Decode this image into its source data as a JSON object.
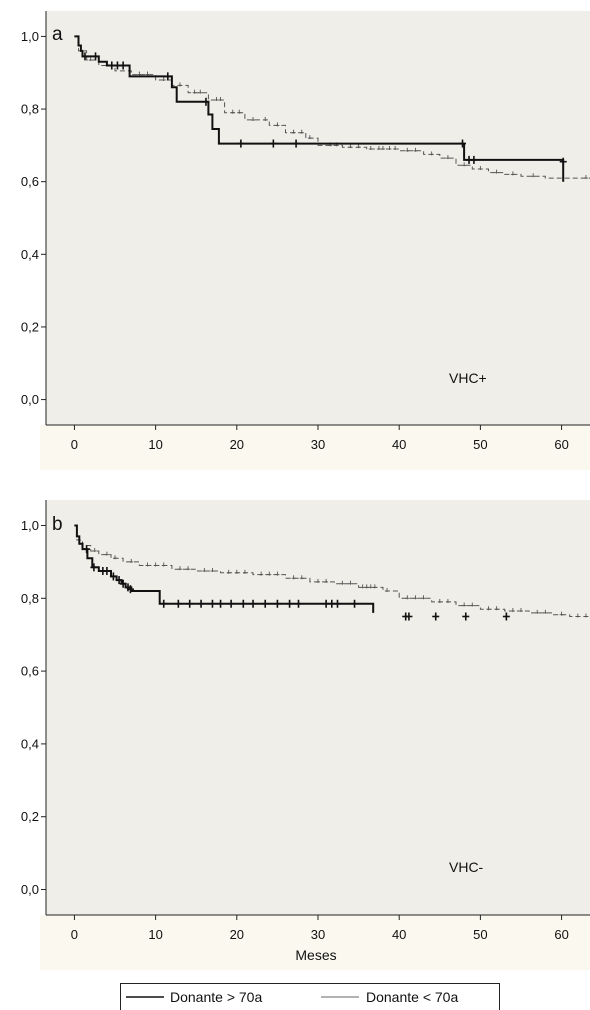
{
  "colors": {
    "panel_background": "#f0eee8",
    "figure_background": "#ffffff",
    "band_background": "#fbf9ef",
    "axis": "#222222",
    "donor_over_70": "#111111",
    "donor_under_70": "#555555"
  },
  "chart_data": [
    {
      "type": "line",
      "panel_label": "a",
      "annotation": "VHC+",
      "xlabel": "",
      "ylabel": "",
      "xlim": [
        -3.5,
        63.5
      ],
      "ylim": [
        -0.07,
        1.07
      ],
      "x_ticks": [
        0,
        10,
        20,
        30,
        40,
        50,
        60
      ],
      "y_ticks": [
        0.0,
        0.2,
        0.4,
        0.6,
        0.8,
        1.0
      ],
      "x_tick_labels": [
        "0",
        "10",
        "20",
        "30",
        "40",
        "50",
        "60"
      ],
      "y_tick_labels": [
        "0,0",
        "0,2",
        "0,4",
        "0,6",
        "0,8",
        "1,0"
      ],
      "grid": false,
      "series": [
        {
          "name": "Donante > 70a",
          "style": "solid",
          "steps": [
            [
              0,
              1.0
            ],
            [
              0.5,
              0.975
            ],
            [
              0.8,
              0.96
            ],
            [
              1.0,
              0.945
            ],
            [
              3.0,
              0.93
            ],
            [
              4.0,
              0.92
            ],
            [
              6.8,
              0.89
            ],
            [
              12.0,
              0.86
            ],
            [
              12.6,
              0.82
            ],
            [
              16.5,
              0.785
            ],
            [
              17.0,
              0.745
            ],
            [
              17.8,
              0.705
            ],
            [
              48.0,
              0.66
            ],
            [
              60.2,
              0.6
            ]
          ],
          "censored": [
            [
              1.3,
              0.945
            ],
            [
              2.6,
              0.945
            ],
            [
              4.6,
              0.92
            ],
            [
              5.3,
              0.92
            ],
            [
              6.0,
              0.92
            ],
            [
              11.5,
              0.89
            ],
            [
              16.2,
              0.82
            ],
            [
              20.5,
              0.705
            ],
            [
              24.5,
              0.705
            ],
            [
              27.3,
              0.705
            ],
            [
              47.8,
              0.705
            ],
            [
              48.6,
              0.66
            ],
            [
              49.2,
              0.66
            ],
            [
              60.2,
              0.655
            ]
          ]
        },
        {
          "name": "Donante < 70a",
          "style": "dashed",
          "steps": [
            [
              0,
              1.0
            ],
            [
              0.5,
              0.96
            ],
            [
              1.5,
              0.935
            ],
            [
              3.0,
              0.92
            ],
            [
              5.0,
              0.905
            ],
            [
              7.0,
              0.895
            ],
            [
              10.0,
              0.88
            ],
            [
              12.0,
              0.865
            ],
            [
              14.0,
              0.845
            ],
            [
              16.5,
              0.825
            ],
            [
              18.5,
              0.79
            ],
            [
              21.0,
              0.77
            ],
            [
              24.0,
              0.755
            ],
            [
              26.0,
              0.735
            ],
            [
              28.5,
              0.72
            ],
            [
              30.0,
              0.7
            ],
            [
              33.0,
              0.695
            ],
            [
              36.0,
              0.69
            ],
            [
              40.0,
              0.685
            ],
            [
              43.0,
              0.675
            ],
            [
              45.0,
              0.665
            ],
            [
              47.0,
              0.645
            ],
            [
              49.0,
              0.635
            ],
            [
              51.0,
              0.625
            ],
            [
              53.0,
              0.62
            ],
            [
              55.0,
              0.615
            ],
            [
              58.0,
              0.61
            ],
            [
              63.5,
              0.61
            ]
          ],
          "censored": [
            [
              2.0,
              0.935
            ],
            [
              4.0,
              0.92
            ],
            [
              8.0,
              0.895
            ],
            [
              9.0,
              0.895
            ],
            [
              11.0,
              0.88
            ],
            [
              13.0,
              0.865
            ],
            [
              14.8,
              0.845
            ],
            [
              15.5,
              0.845
            ],
            [
              17.5,
              0.825
            ],
            [
              18.0,
              0.825
            ],
            [
              19.5,
              0.79
            ],
            [
              20.3,
              0.79
            ],
            [
              22.0,
              0.77
            ],
            [
              23.5,
              0.77
            ],
            [
              25.0,
              0.755
            ],
            [
              27.0,
              0.735
            ],
            [
              28.0,
              0.735
            ],
            [
              29.0,
              0.72
            ],
            [
              31.5,
              0.7
            ],
            [
              32.3,
              0.7
            ],
            [
              34.0,
              0.695
            ],
            [
              35.0,
              0.695
            ],
            [
              36.5,
              0.69
            ],
            [
              37.5,
              0.69
            ],
            [
              38.0,
              0.69
            ],
            [
              38.8,
              0.69
            ],
            [
              39.5,
              0.69
            ],
            [
              41.0,
              0.685
            ],
            [
              42.0,
              0.685
            ],
            [
              44.0,
              0.675
            ],
            [
              46.0,
              0.665
            ],
            [
              48.0,
              0.645
            ],
            [
              50.0,
              0.635
            ],
            [
              52.0,
              0.625
            ],
            [
              54.0,
              0.62
            ],
            [
              56.5,
              0.615
            ],
            [
              63.0,
              0.61
            ]
          ]
        }
      ]
    },
    {
      "type": "line",
      "panel_label": "b",
      "annotation": "VHC-",
      "xlabel": "Meses",
      "ylabel": "",
      "xlim": [
        -3.5,
        63.5
      ],
      "ylim": [
        -0.07,
        1.07
      ],
      "x_ticks": [
        0,
        10,
        20,
        30,
        40,
        50,
        60
      ],
      "y_ticks": [
        0.0,
        0.2,
        0.4,
        0.6,
        0.8,
        1.0
      ],
      "x_tick_labels": [
        "0",
        "10",
        "20",
        "30",
        "40",
        "50",
        "60"
      ],
      "y_tick_labels": [
        "0,0",
        "0,2",
        "0,4",
        "0,6",
        "0,8",
        "1,0"
      ],
      "grid": false,
      "series": [
        {
          "name": "Donante > 70a",
          "style": "solid",
          "steps": [
            [
              0,
              1.0
            ],
            [
              0.3,
              0.97
            ],
            [
              0.6,
              0.95
            ],
            [
              1.0,
              0.935
            ],
            [
              1.6,
              0.91
            ],
            [
              2.2,
              0.885
            ],
            [
              3.0,
              0.875
            ],
            [
              4.5,
              0.86
            ],
            [
              5.2,
              0.85
            ],
            [
              5.8,
              0.84
            ],
            [
              6.3,
              0.83
            ],
            [
              7.0,
              0.82
            ],
            [
              10.5,
              0.785
            ],
            [
              36.8,
              0.76
            ]
          ],
          "censored": [
            [
              1.5,
              0.935
            ],
            [
              2.4,
              0.885
            ],
            [
              3.5,
              0.875
            ],
            [
              4.0,
              0.875
            ],
            [
              4.8,
              0.86
            ],
            [
              5.5,
              0.85
            ],
            [
              6.0,
              0.84
            ],
            [
              6.6,
              0.83
            ],
            [
              6.9,
              0.825
            ],
            [
              11.0,
              0.785
            ],
            [
              12.8,
              0.785
            ],
            [
              14.2,
              0.785
            ],
            [
              15.6,
              0.785
            ],
            [
              17.0,
              0.785
            ],
            [
              18.0,
              0.785
            ],
            [
              19.3,
              0.785
            ],
            [
              20.8,
              0.785
            ],
            [
              22.0,
              0.785
            ],
            [
              23.5,
              0.785
            ],
            [
              25.0,
              0.785
            ],
            [
              26.5,
              0.785
            ],
            [
              27.6,
              0.785
            ],
            [
              31.0,
              0.785
            ],
            [
              31.7,
              0.785
            ],
            [
              32.4,
              0.785
            ],
            [
              34.5,
              0.785
            ],
            [
              40.8,
              0.75
            ],
            [
              41.2,
              0.75
            ],
            [
              44.5,
              0.75
            ],
            [
              48.2,
              0.75
            ],
            [
              53.2,
              0.75
            ]
          ]
        },
        {
          "name": "Donante < 70a",
          "style": "dashed",
          "steps": [
            [
              0,
              1.0
            ],
            [
              0.3,
              0.96
            ],
            [
              1.0,
              0.945
            ],
            [
              2.0,
              0.93
            ],
            [
              3.0,
              0.92
            ],
            [
              4.5,
              0.91
            ],
            [
              6.0,
              0.9
            ],
            [
              8.0,
              0.89
            ],
            [
              12.0,
              0.88
            ],
            [
              15.0,
              0.875
            ],
            [
              18.0,
              0.87
            ],
            [
              22.0,
              0.865
            ],
            [
              26.0,
              0.855
            ],
            [
              29.0,
              0.845
            ],
            [
              32.0,
              0.84
            ],
            [
              35.0,
              0.83
            ],
            [
              38.0,
              0.82
            ],
            [
              40.0,
              0.8
            ],
            [
              44.0,
              0.79
            ],
            [
              47.0,
              0.78
            ],
            [
              50.0,
              0.77
            ],
            [
              53.0,
              0.765
            ],
            [
              56.0,
              0.76
            ],
            [
              59.0,
              0.755
            ],
            [
              61.0,
              0.75
            ],
            [
              63.5,
              0.75
            ]
          ],
          "censored": [
            [
              2.5,
              0.93
            ],
            [
              4.0,
              0.92
            ],
            [
              5.0,
              0.91
            ],
            [
              7.0,
              0.9
            ],
            [
              9.0,
              0.89
            ],
            [
              10.0,
              0.89
            ],
            [
              11.0,
              0.89
            ],
            [
              13.0,
              0.88
            ],
            [
              14.0,
              0.88
            ],
            [
              16.0,
              0.875
            ],
            [
              17.0,
              0.875
            ],
            [
              19.0,
              0.87
            ],
            [
              20.0,
              0.87
            ],
            [
              21.0,
              0.87
            ],
            [
              23.0,
              0.865
            ],
            [
              24.0,
              0.865
            ],
            [
              25.0,
              0.865
            ],
            [
              27.0,
              0.855
            ],
            [
              28.0,
              0.855
            ],
            [
              30.0,
              0.845
            ],
            [
              31.0,
              0.845
            ],
            [
              33.0,
              0.84
            ],
            [
              34.0,
              0.84
            ],
            [
              35.5,
              0.83
            ],
            [
              36.0,
              0.83
            ],
            [
              36.5,
              0.83
            ],
            [
              37.0,
              0.83
            ],
            [
              38.5,
              0.82
            ],
            [
              41.0,
              0.8
            ],
            [
              42.0,
              0.8
            ],
            [
              43.0,
              0.8
            ],
            [
              45.0,
              0.79
            ],
            [
              46.0,
              0.79
            ],
            [
              48.0,
              0.78
            ],
            [
              49.0,
              0.78
            ],
            [
              51.0,
              0.77
            ],
            [
              52.0,
              0.77
            ],
            [
              54.0,
              0.765
            ],
            [
              55.0,
              0.765
            ],
            [
              57.0,
              0.76
            ],
            [
              58.0,
              0.76
            ],
            [
              60.0,
              0.755
            ],
            [
              62.0,
              0.75
            ],
            [
              63.0,
              0.75
            ]
          ]
        }
      ]
    }
  ],
  "legend": {
    "placement": "bottom-center",
    "items": [
      {
        "label": "Donante > 70a",
        "style": "solid"
      },
      {
        "label": "Donante < 70a",
        "style": "thin"
      }
    ]
  }
}
